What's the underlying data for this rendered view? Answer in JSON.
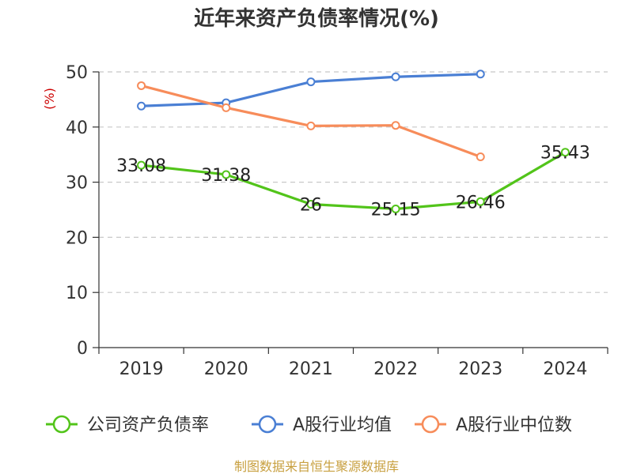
{
  "chart_data": {
    "type": "line",
    "title": "近年来资产负债率情况(%)",
    "ylabel": "(%)",
    "xlabel": "",
    "categories": [
      "2019",
      "2020",
      "2021",
      "2022",
      "2023",
      "2024"
    ],
    "ylim": [
      0,
      50
    ],
    "yticks": [
      0,
      10,
      20,
      30,
      40,
      50
    ],
    "grid": true,
    "legend_position": "bottom",
    "series": [
      {
        "name": "公司资产负债率",
        "color": "#52c41a",
        "values": [
          33.08,
          31.38,
          26,
          25.15,
          26.46,
          35.43
        ],
        "labels": [
          "33.08",
          "31.38",
          "26",
          "25.15",
          "26.46",
          "35.43"
        ]
      },
      {
        "name": "A股行业均值",
        "color": "#4a7fd4",
        "values": [
          43.8,
          44.4,
          48.2,
          49.1,
          49.6,
          null
        ]
      },
      {
        "name": "A股行业中位数",
        "color": "#f78c5a",
        "values": [
          47.5,
          43.5,
          40.2,
          40.3,
          34.6,
          null
        ]
      }
    ]
  },
  "source_text": "制图数据来自恒生聚源数据库"
}
